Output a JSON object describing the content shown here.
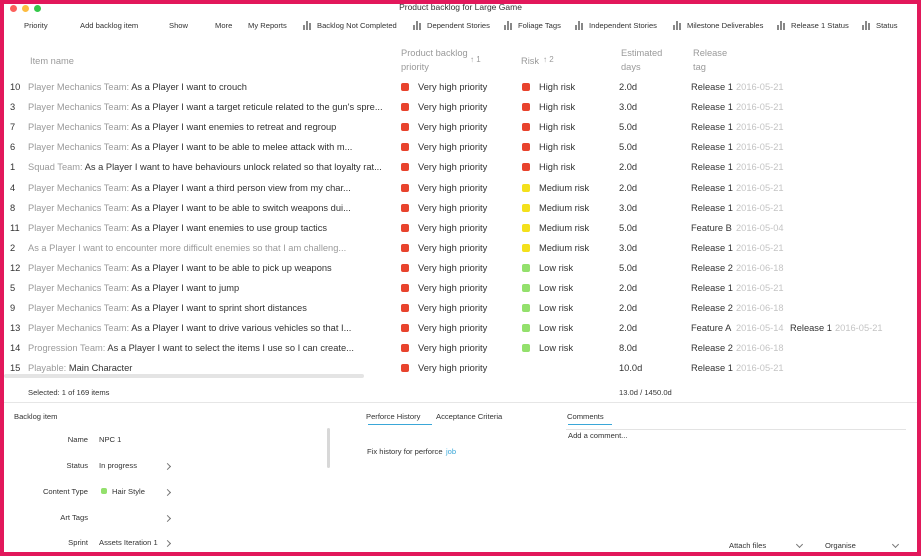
{
  "window": {
    "title": "Product backlog for Large Game"
  },
  "toolbar": [
    "Priority",
    "Add backlog item",
    "Show",
    "More",
    "My Reports",
    "Backlog Not Completed",
    "Dependent Stories",
    "Foliage Tags",
    "Independent Stories",
    "Milestone Deliverables",
    "Release 1 Status",
    "Status"
  ],
  "table": {
    "headers": {
      "name": "Item name",
      "priority": "Product backlog priority",
      "priority_sort": "↑ 1",
      "risk": "Risk",
      "risk_sort": "↑ 2",
      "days": "Estimated days",
      "release": "Release tag"
    },
    "priority_color": "#e8432d",
    "rows": [
      {
        "index": "10",
        "team": "Player Mechanics Team:",
        "text": "As a Player I want to crouch",
        "priority": "Very high priority",
        "risk": "High risk",
        "risk_color": "#e8432d",
        "days": "2.0d",
        "release": "Release 1",
        "date": "2016-05-21"
      },
      {
        "index": "3",
        "team": "Player Mechanics Team:",
        "text": "As a Player I want a target reticule related to the gun's spre...",
        "priority": "Very high priority",
        "risk": "High risk",
        "risk_color": "#e8432d",
        "days": "3.0d",
        "release": "Release 1",
        "date": "2016-05-21"
      },
      {
        "index": "7",
        "team": "Player Mechanics Team:",
        "text": "As a Player I want enemies to retreat and regroup",
        "priority": "Very high priority",
        "risk": "High risk",
        "risk_color": "#e8432d",
        "days": "5.0d",
        "release": "Release 1",
        "date": "2016-05-21"
      },
      {
        "index": "6",
        "team": "Player Mechanics Team:",
        "text": "As a Player I want to be able to melee attack with m...",
        "priority": "Very high priority",
        "risk": "High risk",
        "risk_color": "#e8432d",
        "days": "5.0d",
        "release": "Release 1",
        "date": "2016-05-21"
      },
      {
        "index": "1",
        "team": "Squad Team:",
        "text": "As a Player I want to have behaviours unlock related so that loyalty rat...",
        "priority": "Very high priority",
        "risk": "High risk",
        "risk_color": "#e8432d",
        "days": "2.0d",
        "release": "Release 1",
        "date": "2016-05-21"
      },
      {
        "index": "4",
        "team": "Player Mechanics Team:",
        "text": "As a Player I want a third person view from my char...",
        "priority": "Very high priority",
        "risk": "Medium risk",
        "risk_color": "#f3e01c",
        "days": "2.0d",
        "release": "Release 1",
        "date": "2016-05-21"
      },
      {
        "index": "8",
        "team": "Player Mechanics Team:",
        "text": "As a Player I want to be able to switch weapons dui...",
        "priority": "Very high priority",
        "risk": "Medium risk",
        "risk_color": "#f3e01c",
        "days": "3.0d",
        "release": "Release 1",
        "date": "2016-05-21"
      },
      {
        "index": "11",
        "team": "Player Mechanics Team:",
        "text": "As a Player I want enemies to use group tactics",
        "priority": "Very high priority",
        "risk": "Medium risk",
        "risk_color": "#f3e01c",
        "days": "5.0d",
        "release": "Feature B",
        "date": "2016-05-04"
      },
      {
        "index": "2",
        "text": "As a Player I want to encounter more difficult enemies so that I am challeng...",
        "priority": "Very high priority",
        "risk": "Medium risk",
        "risk_color": "#f3e01c",
        "days": "3.0d",
        "release": "Release 1",
        "date": "2016-05-21"
      },
      {
        "index": "12",
        "team": "Player Mechanics Team:",
        "text": "As a Player I want to be able to pick up weapons",
        "priority": "Very high priority",
        "risk": "Low risk",
        "risk_color": "#93e06c",
        "days": "5.0d",
        "release": "Release 2",
        "date": "2016-06-18"
      },
      {
        "index": "5",
        "team": "Player Mechanics Team:",
        "text": "As a Player I want to jump",
        "priority": "Very high priority",
        "risk": "Low risk",
        "risk_color": "#93e06c",
        "days": "2.0d",
        "release": "Release 1",
        "date": "2016-05-21"
      },
      {
        "index": "9",
        "team": "Player Mechanics Team:",
        "text": "As a Player I want to sprint short distances",
        "priority": "Very high priority",
        "risk": "Low risk",
        "risk_color": "#93e06c",
        "days": "2.0d",
        "release": "Release 2",
        "date": "2016-06-18"
      },
      {
        "index": "13",
        "team": "Player Mechanics Team:",
        "text": "As a Player I want to drive various vehicles so that I...",
        "priority": "Very high priority",
        "risk": "Low risk",
        "risk_color": "#93e06c",
        "days": "2.0d",
        "release": "Feature A",
        "date": "2016-05-14",
        "release2": "Release 1",
        "date2": "2016-05-21"
      },
      {
        "index": "14",
        "team": "Progression Team:",
        "text": "As a Player I want to select the items I use so I can create...",
        "priority": "Very high priority",
        "risk": "Low risk",
        "risk_color": "#93e06c",
        "days": "8.0d",
        "release": "Release 2",
        "date": "2016-06-18"
      },
      {
        "index": "15",
        "team": "Playable:",
        "text": "Main Character",
        "priority": "Very high priority",
        "days": "10.0d",
        "release": "Release 1",
        "date": "2016-05-21"
      }
    ],
    "footer": {
      "selected": "Selected: 1 of 169 items",
      "total": "13.0d / 1450.0d"
    }
  },
  "detail": {
    "title": "Backlog item",
    "fields": [
      {
        "label": "Name",
        "value": "NPC 1"
      },
      {
        "label": "Status",
        "value": "In progress"
      },
      {
        "label": "Content Type",
        "value": "Hair Style",
        "color": "#93e06c"
      },
      {
        "label": "Art Tags"
      },
      {
        "label": "Sprint",
        "value": "Assets Iteration 1"
      }
    ],
    "tabs": [
      "Perforce History",
      "Acceptance Criteria"
    ],
    "history": {
      "text": "Fix history for perforce",
      "link": "job"
    },
    "comments": {
      "tab": "Comments",
      "placeholder": "Add a comment..."
    },
    "actions": [
      "Attach files",
      "Organise"
    ]
  }
}
